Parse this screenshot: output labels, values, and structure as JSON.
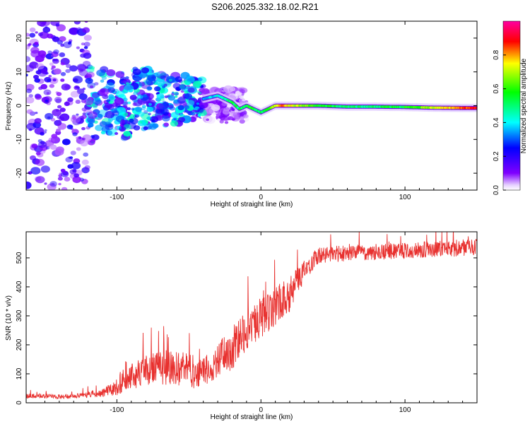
{
  "title": "S206.2025.332.18.02.R21",
  "chart_data": [
    {
      "type": "heatmap",
      "name": "spectrogram",
      "xlabel": "Height of straight line (km)",
      "ylabel": "Frequency (Hz)",
      "xlim": [
        -163,
        150
      ],
      "ylim": [
        -25,
        25
      ],
      "xticks": [
        -100,
        0,
        100
      ],
      "xtick_labels": [
        "-100",
        "0",
        "100"
      ],
      "yticks": [
        -20,
        -10,
        0,
        10,
        20
      ],
      "ytick_labels": [
        "-20",
        "-10",
        "0",
        "10",
        "20"
      ],
      "colorbar": {
        "label": "Normalized spectral amplitude",
        "range": [
          0,
          1
        ],
        "ticks": [
          0.0,
          0.2,
          0.4,
          0.6,
          0.8
        ],
        "tick_labels": [
          "0.0",
          "0.2",
          "0.4",
          "0.6",
          "0.8"
        ],
        "colormap": [
          "#ffffff",
          "#8000ff",
          "#0000ff",
          "#00ffff",
          "#00ff00",
          "#ffff00",
          "#ff0000",
          "#ff00a0"
        ]
      },
      "ridge": {
        "description": "dominant frequency ridge",
        "x": [
          -40,
          -30,
          -25,
          -20,
          -15,
          -10,
          -5,
          0,
          5,
          10,
          15,
          20,
          40,
          60,
          80,
          100,
          120,
          150
        ],
        "freq": [
          2,
          3,
          2,
          1,
          -1,
          0,
          -1,
          -2,
          -1,
          0,
          0,
          0,
          0,
          -0.3,
          -0.3,
          -0.4,
          -0.6,
          -0.7
        ],
        "amplitude": [
          0.35,
          0.4,
          0.45,
          0.5,
          0.5,
          0.55,
          0.55,
          0.5,
          0.6,
          0.7,
          0.8,
          0.75,
          0.55,
          0.5,
          0.5,
          0.55,
          0.7,
          0.9
        ]
      },
      "noise_region": {
        "x_start": -163,
        "x_end": -120,
        "spread_hz": 25,
        "amplitude": 0.12
      },
      "transition_region": {
        "x_start": -120,
        "x_end": -40,
        "amplitude": 0.3
      }
    },
    {
      "type": "line",
      "name": "snr",
      "color": "#e8312f",
      "xlabel": "Height of straight line (km)",
      "ylabel": "SNR (10 * v/v)",
      "xlim": [
        -163,
        150
      ],
      "ylim": [
        0,
        590
      ],
      "xticks": [
        -100,
        0,
        100
      ],
      "xtick_labels": [
        "-100",
        "0",
        "100"
      ],
      "yticks": [
        0,
        100,
        200,
        300,
        400,
        500
      ],
      "ytick_labels": [
        "0",
        "100",
        "200",
        "300",
        "400",
        "500"
      ],
      "trend": {
        "x": [
          -163,
          -130,
          -110,
          -100,
          -90,
          -80,
          -70,
          -60,
          -50,
          -40,
          -30,
          -20,
          -10,
          0,
          10,
          20,
          30,
          40,
          60,
          80,
          100,
          120,
          150
        ],
        "y": [
          22,
          20,
          30,
          50,
          80,
          100,
          110,
          110,
          100,
          90,
          140,
          170,
          240,
          280,
          320,
          360,
          450,
          500,
          510,
          515,
          520,
          525,
          530
        ],
        "noise": [
          8,
          8,
          15,
          30,
          45,
          55,
          60,
          60,
          60,
          55,
          65,
          70,
          75,
          75,
          70,
          60,
          40,
          30,
          28,
          28,
          28,
          28,
          30
        ]
      }
    }
  ]
}
